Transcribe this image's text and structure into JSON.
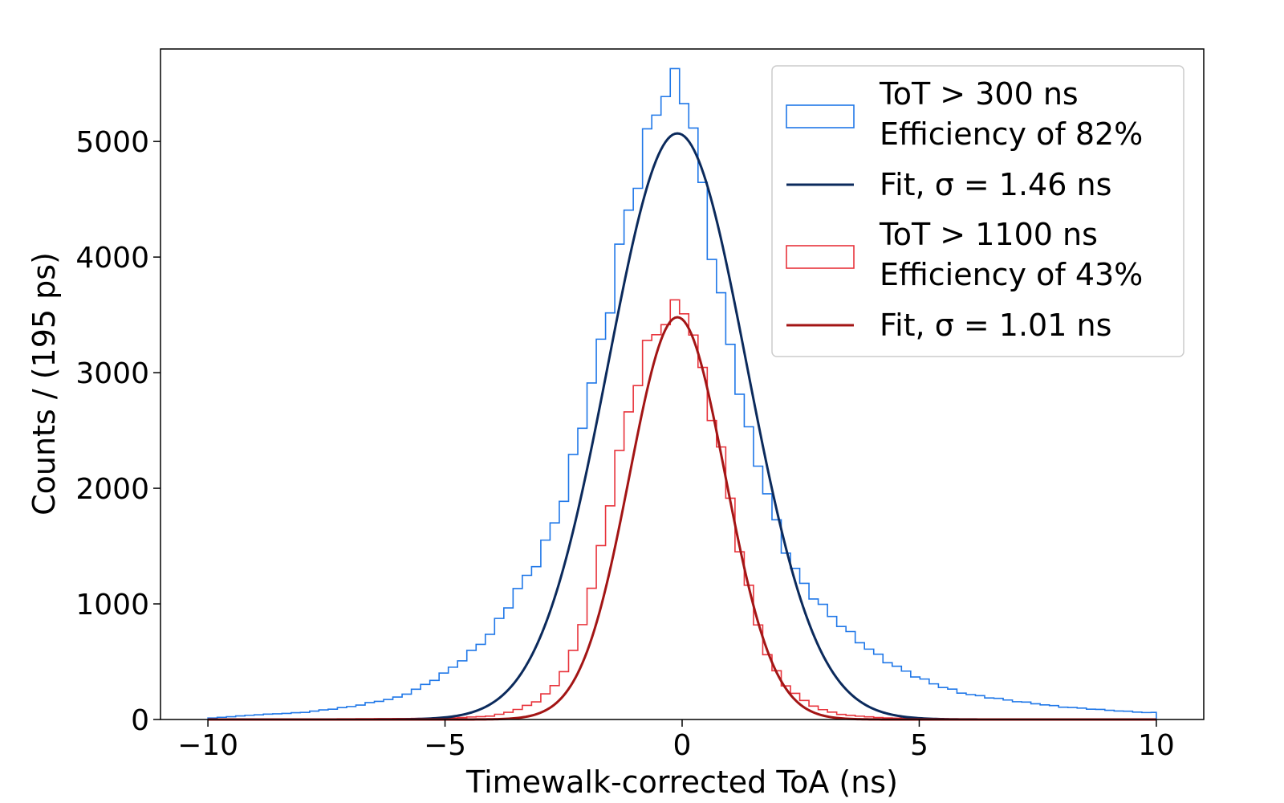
{
  "chart_data": {
    "type": "line",
    "title": "",
    "xlabel": "Timewalk-corrected ToA (ns)",
    "ylabel": "Counts / (195 ps)",
    "xlim": [
      -11,
      11
    ],
    "ylim": [
      0,
      5800
    ],
    "x_ticks": [
      {
        "value": -10,
        "label": "−10"
      },
      {
        "value": -5,
        "label": "−5"
      },
      {
        "value": 0,
        "label": "0"
      },
      {
        "value": 5,
        "label": "5"
      },
      {
        "value": 10,
        "label": "10"
      }
    ],
    "y_ticks": [
      {
        "value": 0,
        "label": "0"
      },
      {
        "value": 1000,
        "label": "1000"
      },
      {
        "value": 2000,
        "label": "2000"
      },
      {
        "value": 3000,
        "label": "3000"
      },
      {
        "value": 4000,
        "label": "4000"
      },
      {
        "value": 5000,
        "label": "5000"
      }
    ],
    "legend_position": "top-right",
    "histograms": [
      {
        "name": "tot300",
        "legend_line1": "ToT > 300 ns",
        "legend_line2": "Efficiency of 82%",
        "color": "#1f77e8",
        "bin_start": -10,
        "bin_width": 0.195,
        "bins": [
          {
            "from": -10.0,
            "value": 10
          },
          {
            "from": -9.0,
            "value": 40
          },
          {
            "from": -8.0,
            "value": 60
          },
          {
            "from": -7.0,
            "value": 110
          },
          {
            "from": -6.0,
            "value": 190
          },
          {
            "from": -5.5,
            "value": 280
          },
          {
            "from": -5.0,
            "value": 400
          },
          {
            "from": -4.5,
            "value": 560
          },
          {
            "from": -4.0,
            "value": 760
          },
          {
            "from": -3.5,
            "value": 1100
          },
          {
            "from": -3.0,
            "value": 1400
          },
          {
            "from": -2.5,
            "value": 1900
          },
          {
            "from": -2.2,
            "value": 2400
          },
          {
            "from": -1.9,
            "value": 2920
          },
          {
            "from": -1.6,
            "value": 3420
          },
          {
            "from": -1.3,
            "value": 4100
          },
          {
            "from": -1.0,
            "value": 4600
          },
          {
            "from": -0.8,
            "value": 4880
          },
          {
            "from": -0.6,
            "value": 5230
          },
          {
            "from": -0.4,
            "value": 5420
          },
          {
            "from": -0.2,
            "value": 5500
          },
          {
            "from": 0.0,
            "value": 5500
          },
          {
            "from": 0.15,
            "value": 5310
          },
          {
            "from": 0.3,
            "value": 4930
          },
          {
            "from": 0.5,
            "value": 4400
          },
          {
            "from": 0.7,
            "value": 3900
          },
          {
            "from": 0.9,
            "value": 3450
          },
          {
            "from": 1.1,
            "value": 3100
          },
          {
            "from": 1.4,
            "value": 2480
          },
          {
            "from": 1.7,
            "value": 2100
          },
          {
            "from": 2.0,
            "value": 1680
          },
          {
            "from": 2.3,
            "value": 1350
          },
          {
            "from": 2.6,
            "value": 1150
          },
          {
            "from": 3.0,
            "value": 960
          },
          {
            "from": 3.5,
            "value": 760
          },
          {
            "from": 4.0,
            "value": 590
          },
          {
            "from": 4.5,
            "value": 460
          },
          {
            "from": 5.0,
            "value": 360
          },
          {
            "from": 5.5,
            "value": 280
          },
          {
            "from": 6.0,
            "value": 220
          },
          {
            "from": 7.0,
            "value": 160
          },
          {
            "from": 8.0,
            "value": 110
          },
          {
            "from": 9.0,
            "value": 80
          },
          {
            "from": 9.8,
            "value": 60
          }
        ],
        "bin_end": 10
      },
      {
        "name": "tot1100",
        "legend_line1": "ToT > 1100 ns",
        "legend_line2": "Efficiency of 43%",
        "color": "#e8333b",
        "bin_start": -10,
        "bin_width": 0.195,
        "bins": [
          {
            "from": -10.0,
            "value": 0
          },
          {
            "from": -5.0,
            "value": 10
          },
          {
            "from": -4.0,
            "value": 30
          },
          {
            "from": -3.5,
            "value": 80
          },
          {
            "from": -3.0,
            "value": 170
          },
          {
            "from": -2.6,
            "value": 330
          },
          {
            "from": -2.3,
            "value": 580
          },
          {
            "from": -2.0,
            "value": 970
          },
          {
            "from": -1.7,
            "value": 1500
          },
          {
            "from": -1.4,
            "value": 2150
          },
          {
            "from": -1.1,
            "value": 2700
          },
          {
            "from": -0.8,
            "value": 3150
          },
          {
            "from": -0.5,
            "value": 3400
          },
          {
            "from": -0.25,
            "value": 3480
          },
          {
            "from": 0.0,
            "value": 3650
          },
          {
            "from": 0.15,
            "value": 3430
          },
          {
            "from": 0.35,
            "value": 3150
          },
          {
            "from": 0.6,
            "value": 2700
          },
          {
            "from": 0.9,
            "value": 2180
          },
          {
            "from": 1.2,
            "value": 1500
          },
          {
            "from": 1.5,
            "value": 970
          },
          {
            "from": 1.8,
            "value": 560
          },
          {
            "from": 2.1,
            "value": 330
          },
          {
            "from": 2.5,
            "value": 180
          },
          {
            "from": 2.9,
            "value": 90
          },
          {
            "from": 3.4,
            "value": 40
          },
          {
            "from": 4.2,
            "value": 15
          },
          {
            "from": 5.5,
            "value": 0
          }
        ],
        "bin_end": 10
      }
    ],
    "fits": [
      {
        "name": "fit300",
        "legend_label": "Fit, σ = 1.46 ns",
        "color": "#0b2a5c",
        "amplitude": 5070,
        "mean": -0.1,
        "sigma": 1.46,
        "x_range": [
          -10,
          10
        ]
      },
      {
        "name": "fit1100",
        "legend_label": "Fit, σ = 1.01 ns",
        "color": "#a31515",
        "amplitude": 3480,
        "mean": -0.1,
        "sigma": 1.01,
        "x_range": [
          -10,
          10
        ]
      }
    ],
    "legend_entries": [
      {
        "kind": "histogram",
        "ref": "tot300"
      },
      {
        "kind": "fit",
        "ref": "fit300"
      },
      {
        "kind": "histogram",
        "ref": "tot1100"
      },
      {
        "kind": "fit",
        "ref": "fit1100"
      }
    ]
  }
}
